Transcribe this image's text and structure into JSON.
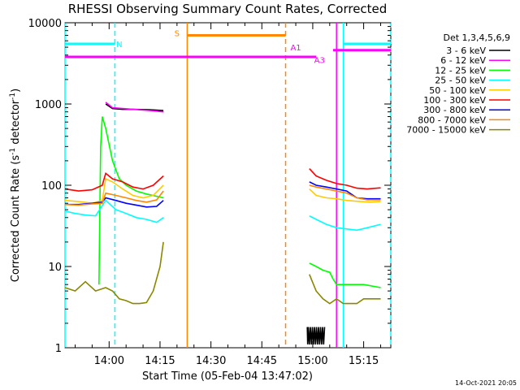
{
  "chart_data": {
    "type": "line",
    "title": "RHESSI Observing Summary Count Rates, Corrected",
    "xlabel": "Start Time (05-Feb-04 13:47:02)",
    "ylabel_main": "Corrected Count Rate (s",
    "ylabel_sup1": "-1",
    "ylabel_mid": " detector",
    "ylabel_sup2": "-1",
    "ylabel_end": ")",
    "yscale": "log",
    "ylim": [
      1,
      10000
    ],
    "xlim_minutes": [
      0,
      96
    ],
    "x_ticks": [
      {
        "label": "14:00",
        "minute": 13
      },
      {
        "label": "14:15",
        "minute": 28
      },
      {
        "label": "14:30",
        "minute": 43
      },
      {
        "label": "14:45",
        "minute": 58
      },
      {
        "label": "15:00",
        "minute": 73
      },
      {
        "label": "15:15",
        "minute": 88
      }
    ],
    "y_ticks": [
      {
        "label": "1",
        "value": 1
      },
      {
        "label": "10",
        "value": 10
      },
      {
        "label": "100",
        "value": 100
      },
      {
        "label": "1000",
        "value": 1000
      },
      {
        "label": "10000",
        "value": 10000
      }
    ],
    "legend_title": "Det 1,3,4,5,6,9",
    "legend_position": "right",
    "series": [
      {
        "name": "3 - 6 keV",
        "color": "#000000",
        "segments": [
          [
            [
              12,
              1000
            ],
            [
              14,
              880
            ],
            [
              17,
              860
            ],
            [
              20,
              860
            ],
            [
              25,
              850
            ],
            [
              29,
              830
            ]
          ],
          [
            [
              71.4,
              1.8
            ],
            [
              71.5,
              1.1
            ],
            [
              71.7,
              1.8
            ],
            [
              72,
              1.1
            ],
            [
              72.3,
              1.8
            ],
            [
              72.6,
              1.1
            ],
            [
              72.9,
              1.8
            ],
            [
              73.2,
              1.1
            ],
            [
              73.5,
              1.8
            ],
            [
              73.8,
              1.1
            ],
            [
              74.1,
              1.8
            ],
            [
              74.4,
              1.1
            ],
            [
              74.7,
              1.8
            ],
            [
              75,
              1.1
            ],
            [
              75.3,
              1.8
            ],
            [
              75.6,
              1.1
            ],
            [
              75.9,
              1.8
            ],
            [
              76.2,
              1.1
            ],
            [
              76.5,
              1.8
            ]
          ]
        ]
      },
      {
        "name": "6 - 12 keV",
        "color": "#ff00ff",
        "segments": [
          [
            [
              12,
              1050
            ],
            [
              14,
              900
            ],
            [
              17,
              880
            ],
            [
              20,
              860
            ],
            [
              25,
              830
            ],
            [
              29,
              800
            ]
          ]
        ]
      },
      {
        "name": "12 - 25 keV",
        "color": "#00ff00",
        "segments": [
          [
            [
              10,
              6
            ],
            [
              10.2,
              30
            ],
            [
              10.5,
              300
            ],
            [
              11,
              700
            ],
            [
              12,
              500
            ],
            [
              14,
              200
            ],
            [
              16,
              120
            ],
            [
              18,
              100
            ],
            [
              21,
              85
            ],
            [
              24,
              78
            ],
            [
              29,
              70
            ]
          ],
          [
            [
              72,
              11
            ],
            [
              74,
              10
            ],
            [
              76,
              9
            ],
            [
              78,
              8.5
            ],
            [
              79,
              7
            ],
            [
              80,
              6
            ],
            [
              84,
              6
            ],
            [
              88,
              6
            ],
            [
              93,
              5.5
            ]
          ]
        ]
      },
      {
        "name": "25 - 50 keV",
        "color": "#00ffff",
        "segments": [
          [
            [
              0,
              48
            ],
            [
              3,
              45
            ],
            [
              6,
              43
            ],
            [
              9,
              42
            ],
            [
              12,
              65
            ],
            [
              15,
              50
            ],
            [
              18,
              45
            ],
            [
              21,
              40
            ],
            [
              24,
              38
            ],
            [
              27,
              35
            ],
            [
              29,
              40
            ]
          ],
          [
            [
              72,
              42
            ],
            [
              74,
              38
            ],
            [
              77,
              33
            ],
            [
              80,
              30
            ],
            [
              83,
              29
            ],
            [
              86,
              28
            ],
            [
              89,
              30
            ],
            [
              93,
              33
            ]
          ]
        ]
      },
      {
        "name": "50 - 100 keV",
        "color": "#ffcc00",
        "segments": [
          [
            [
              0,
              65
            ],
            [
              4,
              63
            ],
            [
              8,
              60
            ],
            [
              11,
              65
            ],
            [
              12,
              120
            ],
            [
              14,
              110
            ],
            [
              17,
              90
            ],
            [
              20,
              75
            ],
            [
              23,
              70
            ],
            [
              26,
              75
            ],
            [
              29,
              100
            ]
          ],
          [
            [
              72,
              90
            ],
            [
              74,
              75
            ],
            [
              77,
              70
            ],
            [
              80,
              68
            ],
            [
              83,
              65
            ],
            [
              87,
              63
            ],
            [
              90,
              62
            ],
            [
              93,
              63
            ]
          ]
        ]
      },
      {
        "name": "100 - 300 keV",
        "color": "#ff0000",
        "segments": [
          [
            [
              0,
              90
            ],
            [
              4,
              85
            ],
            [
              8,
              88
            ],
            [
              11,
              100
            ],
            [
              12,
              140
            ],
            [
              14,
              120
            ],
            [
              17,
              110
            ],
            [
              20,
              95
            ],
            [
              23,
              90
            ],
            [
              26,
              100
            ],
            [
              29,
              130
            ]
          ],
          [
            [
              72,
              160
            ],
            [
              74,
              130
            ],
            [
              77,
              115
            ],
            [
              80,
              105
            ],
            [
              83,
              100
            ],
            [
              86,
              92
            ],
            [
              89,
              90
            ],
            [
              93,
              93
            ]
          ]
        ]
      },
      {
        "name": "300 - 800 keV",
        "color": "#0000ff",
        "segments": [
          [
            [
              0,
              58
            ],
            [
              4,
              58
            ],
            [
              8,
              60
            ],
            [
              11,
              62
            ],
            [
              12,
              70
            ],
            [
              15,
              65
            ],
            [
              18,
              60
            ],
            [
              21,
              57
            ],
            [
              24,
              54
            ],
            [
              27,
              55
            ],
            [
              29,
              65
            ]
          ],
          [
            [
              72,
              110
            ],
            [
              74,
              100
            ],
            [
              77,
              95
            ],
            [
              80,
              90
            ],
            [
              83,
              85
            ],
            [
              86,
              70
            ],
            [
              89,
              68
            ],
            [
              93,
              68
            ]
          ]
        ]
      },
      {
        "name": "800 - 7000 keV",
        "color": "#ff8800",
        "segments": [
          [
            [
              0,
              58
            ],
            [
              4,
              57
            ],
            [
              8,
              59
            ],
            [
              11,
              60
            ],
            [
              12,
              80
            ],
            [
              15,
              75
            ],
            [
              18,
              70
            ],
            [
              21,
              65
            ],
            [
              24,
              62
            ],
            [
              27,
              66
            ],
            [
              29,
              85
            ]
          ],
          [
            [
              72,
              100
            ],
            [
              74,
              95
            ],
            [
              77,
              90
            ],
            [
              80,
              85
            ],
            [
              83,
              80
            ],
            [
              86,
              70
            ],
            [
              89,
              66
            ],
            [
              93,
              66
            ]
          ]
        ]
      },
      {
        "name": "7000 - 15000 keV",
        "color": "#888800",
        "segments": [
          [
            [
              0,
              5.5
            ],
            [
              3,
              5
            ],
            [
              6,
              6.5
            ],
            [
              9,
              5
            ],
            [
              12,
              5.5
            ],
            [
              14,
              5
            ],
            [
              16,
              4
            ],
            [
              18,
              3.8
            ],
            [
              20,
              3.5
            ],
            [
              22,
              3.5
            ],
            [
              24,
              3.6
            ],
            [
              26,
              5
            ],
            [
              28,
              10
            ],
            [
              29,
              20
            ]
          ],
          [
            [
              72,
              8
            ],
            [
              74,
              5
            ],
            [
              76,
              4
            ],
            [
              78,
              3.5
            ],
            [
              80,
              4
            ],
            [
              82,
              3.5
            ],
            [
              84,
              3.5
            ],
            [
              86,
              3.5
            ],
            [
              88,
              4
            ],
            [
              90,
              4
            ],
            [
              93,
              4
            ]
          ]
        ]
      }
    ],
    "state_bars": [
      {
        "label": "N",
        "color": "#00ffff",
        "value": 5500,
        "segments": [
          [
            0,
            14.7
          ],
          [
            82,
            96
          ]
        ],
        "vlines": [
          [
            0,
            "solid"
          ],
          [
            14.7,
            "dash"
          ],
          [
            82,
            "solid"
          ],
          [
            96,
            "dash"
          ]
        ],
        "label_minute": 16,
        "label_value": 5500
      },
      {
        "label": "S",
        "color": "#ff8800",
        "value": 7000,
        "segments": [
          [
            36,
            65
          ]
        ],
        "vlines": [
          [
            36,
            "solid"
          ],
          [
            65,
            "dash"
          ]
        ],
        "label_minute": 33,
        "label_value": 7500
      },
      {
        "label": "A1",
        "color": "#ff00ff",
        "value": 4600,
        "segments": [
          [
            79,
            96
          ]
        ],
        "vlines": [],
        "label_minute": 68,
        "label_value": 5000
      },
      {
        "label": "A3",
        "color": "#ff00ff",
        "value": 3800,
        "segments": [
          [
            0,
            74
          ]
        ],
        "vlines": [
          [
            80,
            "solid"
          ]
        ],
        "label_minute": 75,
        "label_value": 3500
      }
    ]
  },
  "stamp": "14-Oct-2021 20:05"
}
